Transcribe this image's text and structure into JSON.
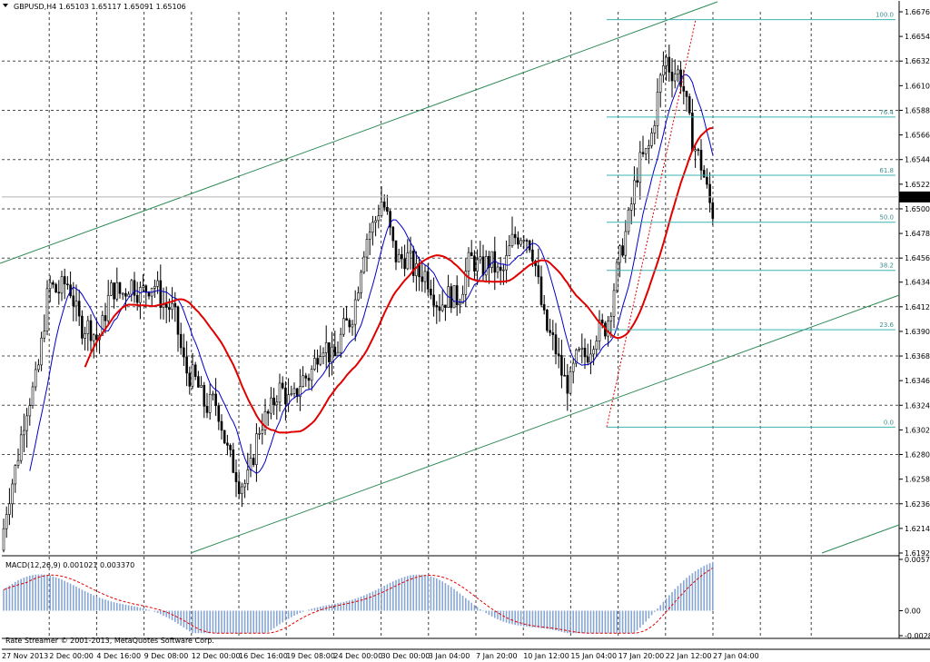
{
  "header": {
    "symbol_line": "GBPUSD,H4  1.65103 1.65117 1.65091 1.65106",
    "menu_icon": "triangle-down-icon"
  },
  "copyright": "Rate Streamer © 2001-2013, MetaQuotes Software Corp.",
  "colors": {
    "candles": "#000000",
    "ma_fast": "#0000cc",
    "ma_slow": "#e00000",
    "channel": "#2e8b57",
    "fib": "#3cb3b3",
    "macd_hist": "#87a6d6",
    "macd_signal": "#e00000",
    "price_tag_bg": "#000000"
  },
  "chart_data": [
    {
      "type": "candlestick",
      "symbol": "GBPUSD",
      "timeframe": "H4",
      "last_price": "1.65106",
      "ylim": [
        1.61925,
        1.6676
      ],
      "y_ticks": [
        "1.66760",
        "1.66540",
        "1.66320",
        "1.66100",
        "1.65880",
        "1.65660",
        "1.65440",
        "1.65220",
        "1.65000",
        "1.64780",
        "1.64560",
        "1.64345",
        "1.64125",
        "1.63905",
        "1.63685",
        "1.63465",
        "1.63245",
        "1.63025",
        "1.62805",
        "1.62585",
        "1.62365",
        "1.62145",
        "1.61925"
      ],
      "x_ticks": [
        "27 Nov 2013",
        "2 Dec 00:00",
        "4 Dec 16:00",
        "9 Dec 08:00",
        "12 Dec 00:00",
        "16 Dec 16:00",
        "19 Dec 08:00",
        "24 Dec 00:00",
        "30 Dec 00:00",
        "3 Jan 04:00",
        "7 Jan 20:00",
        "10 Jan 12:00",
        "15 Jan 04:00",
        "17 Jan 20:00",
        "22 Jan 12:00",
        "27 Jan 04:00"
      ],
      "key_points": [
        {
          "x": "27 Nov 2013",
          "close": 1.6195
        },
        {
          "x": "2 Dec 00:00",
          "close": 1.643
        },
        {
          "x": "4 Dec 16:00",
          "close": 1.6395
        },
        {
          "x": "9 Dec 08:00",
          "close": 1.6445
        },
        {
          "x": "12 Dec 00:00",
          "close": 1.636
        },
        {
          "x": "16 Dec 16:00",
          "close": 1.626
        },
        {
          "x": "19 Dec 08:00",
          "close": 1.634
        },
        {
          "x": "24 Dec 00:00",
          "close": 1.637
        },
        {
          "x": "30 Dec 00:00",
          "close": 1.65
        },
        {
          "x": "3 Jan 04:00",
          "close": 1.642
        },
        {
          "x": "7 Jan 20:00",
          "close": 1.644
        },
        {
          "x": "10 Jan 12:00",
          "close": 1.6475
        },
        {
          "x": "15 Jan 04:00",
          "close": 1.6335
        },
        {
          "x": "17 Jan 20:00",
          "close": 1.644
        },
        {
          "x": "22 Jan 12:00",
          "close": 1.664
        },
        {
          "x": "27 Jan 04:00",
          "close": 1.6511
        }
      ],
      "fibonacci": [
        {
          "label": "100.0",
          "price": 1.6669
        },
        {
          "label": "76.4",
          "price": 1.6582
        },
        {
          "label": "61.8",
          "price": 1.653
        },
        {
          "label": "50.0",
          "price": 1.6488
        },
        {
          "label": "38.2",
          "price": 1.6445
        },
        {
          "label": "23.6",
          "price": 1.6392
        },
        {
          "label": "0.0",
          "price": 1.6305
        }
      ]
    },
    {
      "type": "histogram",
      "title": "MACD(12,26,9) 0.001021 0.003370",
      "ylim": [
        -0.0028,
        0.005761
      ],
      "y_ticks": [
        "0.005761",
        "0.00",
        "-0.002802"
      ]
    }
  ]
}
